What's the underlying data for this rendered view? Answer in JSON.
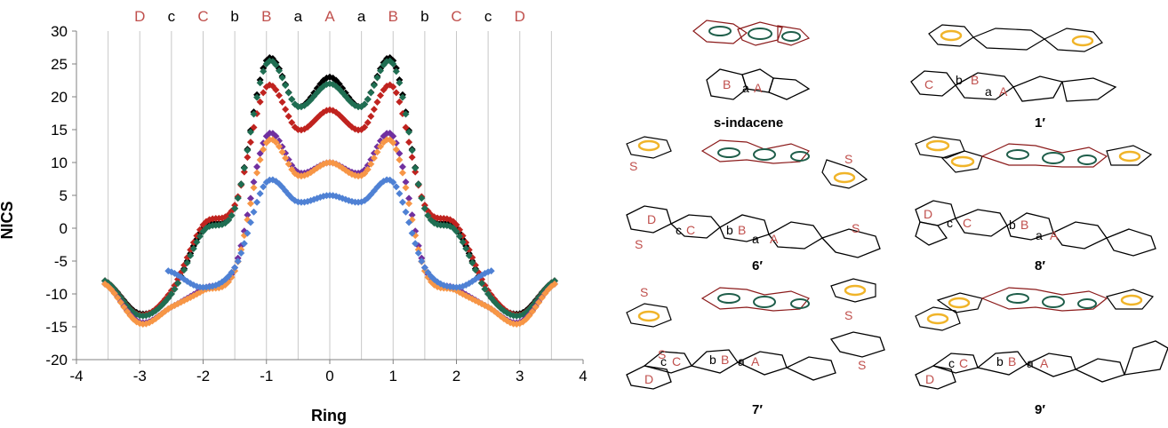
{
  "chart_data": {
    "type": "scatter",
    "xlabel": "Ring",
    "ylabel": "NICS",
    "xlim": [
      -4,
      4
    ],
    "ylim": [
      -20,
      30
    ],
    "x_ticks": [
      "-4",
      "-3",
      "-2",
      "-1",
      "0",
      "1",
      "2",
      "3",
      "4"
    ],
    "y_ticks": [
      "30",
      "25",
      "20",
      "15",
      "10",
      "5",
      "0",
      "-5",
      "-10",
      "-15",
      "-20"
    ],
    "grid": "vertical",
    "top_ring_labels": [
      {
        "x": -3,
        "label": "D",
        "color": "#c0504d"
      },
      {
        "x": -2.5,
        "label": "c",
        "color": "#000000"
      },
      {
        "x": -2,
        "label": "C",
        "color": "#c0504d"
      },
      {
        "x": -1.5,
        "label": "b",
        "color": "#000000"
      },
      {
        "x": -1,
        "label": "B",
        "color": "#c0504d"
      },
      {
        "x": -0.5,
        "label": "a",
        "color": "#000000"
      },
      {
        "x": 0,
        "label": "A",
        "color": "#c0504d"
      },
      {
        "x": 0.5,
        "label": "a",
        "color": "#000000"
      },
      {
        "x": 1,
        "label": "B",
        "color": "#c0504d"
      },
      {
        "x": 1.5,
        "label": "b",
        "color": "#000000"
      },
      {
        "x": 2,
        "label": "C",
        "color": "#c0504d"
      },
      {
        "x": 2.5,
        "label": "c",
        "color": "#000000"
      },
      {
        "x": 3,
        "label": "D",
        "color": "#c0504d"
      }
    ],
    "series": [
      {
        "color": "#000000",
        "x": [
          -3.55,
          -3,
          -2.5,
          -2,
          -1.5,
          -1,
          -0.5,
          0,
          0.5,
          1,
          1.5,
          2,
          2.5,
          3,
          3.55
        ],
        "y": [
          -8,
          -13,
          -10,
          0,
          3,
          25.5,
          18.5,
          23,
          18.5,
          25.5,
          3,
          0,
          -10,
          -13,
          -8
        ]
      },
      {
        "color": "#c0231f",
        "x": [
          -3.55,
          -3,
          -2.5,
          -2,
          -1.5,
          -1,
          -0.5,
          0,
          0.5,
          1,
          1.5,
          2,
          2.5,
          3,
          3.55
        ],
        "y": [
          -8,
          -13.2,
          -9.5,
          0.5,
          3.5,
          21.5,
          15,
          18,
          15,
          21.5,
          3.5,
          0.5,
          -9.5,
          -13.2,
          -8
        ]
      },
      {
        "color": "#1f6e52",
        "x": [
          -3.55,
          -3,
          -2.5,
          -2,
          -1.5,
          -1,
          -0.5,
          0,
          0.5,
          1,
          1.5,
          2,
          2.5,
          3,
          3.55
        ],
        "y": [
          -8,
          -13.3,
          -10,
          -0.5,
          3,
          25,
          18.5,
          22,
          18.5,
          25,
          3,
          -0.5,
          -10,
          -13.3,
          -8
        ]
      },
      {
        "color": "#7030a0",
        "x": [
          -3.55,
          -3,
          -2.5,
          -2,
          -1.5,
          -1,
          -0.5,
          0,
          0.5,
          1,
          1.5,
          2,
          2.5,
          3,
          3.55
        ],
        "y": [
          -8.5,
          -14.3,
          -12,
          -9.2,
          -6,
          14,
          8.5,
          10,
          8.5,
          14,
          -6,
          -9.2,
          -12,
          -14.3,
          -8.5
        ]
      },
      {
        "color": "#f79646",
        "x": [
          -3.55,
          -3,
          -2.5,
          -2,
          -1.5,
          -1,
          -0.5,
          0,
          0.5,
          1,
          1.5,
          2,
          2.5,
          3,
          3.55
        ],
        "y": [
          -8.5,
          -14.5,
          -12,
          -9.5,
          -6.5,
          13,
          8,
          10,
          8,
          13,
          -6.5,
          -9.5,
          -12,
          -14.5,
          -8.5
        ]
      },
      {
        "color": "#4f81d4",
        "x": [
          -2.55,
          -2,
          -1.5,
          -1,
          -0.5,
          0,
          0.5,
          1,
          1.5,
          2,
          2.55
        ],
        "y": [
          -6.5,
          -9,
          -6,
          7,
          4,
          5,
          4,
          7,
          -6,
          -9,
          -6.5
        ]
      }
    ]
  },
  "molecules": {
    "s_indacene": {
      "name": "s-indacene",
      "rings": [
        "B",
        "a",
        "A"
      ]
    },
    "m1": {
      "name": "1′",
      "rings": [
        "C",
        "b",
        "B",
        "a",
        "A"
      ]
    },
    "m6": {
      "name": "6′",
      "rings": [
        "D",
        "c",
        "C",
        "b",
        "B",
        "a",
        "A"
      ],
      "hetero": "S"
    },
    "m8": {
      "name": "8′",
      "rings": [
        "D",
        "c",
        "C",
        "b",
        "B",
        "a",
        "A"
      ]
    },
    "m7": {
      "name": "7′",
      "rings": [
        "D",
        "c",
        "C",
        "b",
        "B",
        "a",
        "A"
      ],
      "hetero": "S"
    },
    "m9": {
      "name": "9′",
      "rings": [
        "D",
        "c",
        "C",
        "b",
        "B",
        "a",
        "A"
      ]
    }
  },
  "colors": {
    "ring_current_dark": "#8b1a1a",
    "ring_current_green": "#1f5e4a",
    "ring_current_yellow": "#f0b429",
    "label_red": "#c0504d"
  }
}
